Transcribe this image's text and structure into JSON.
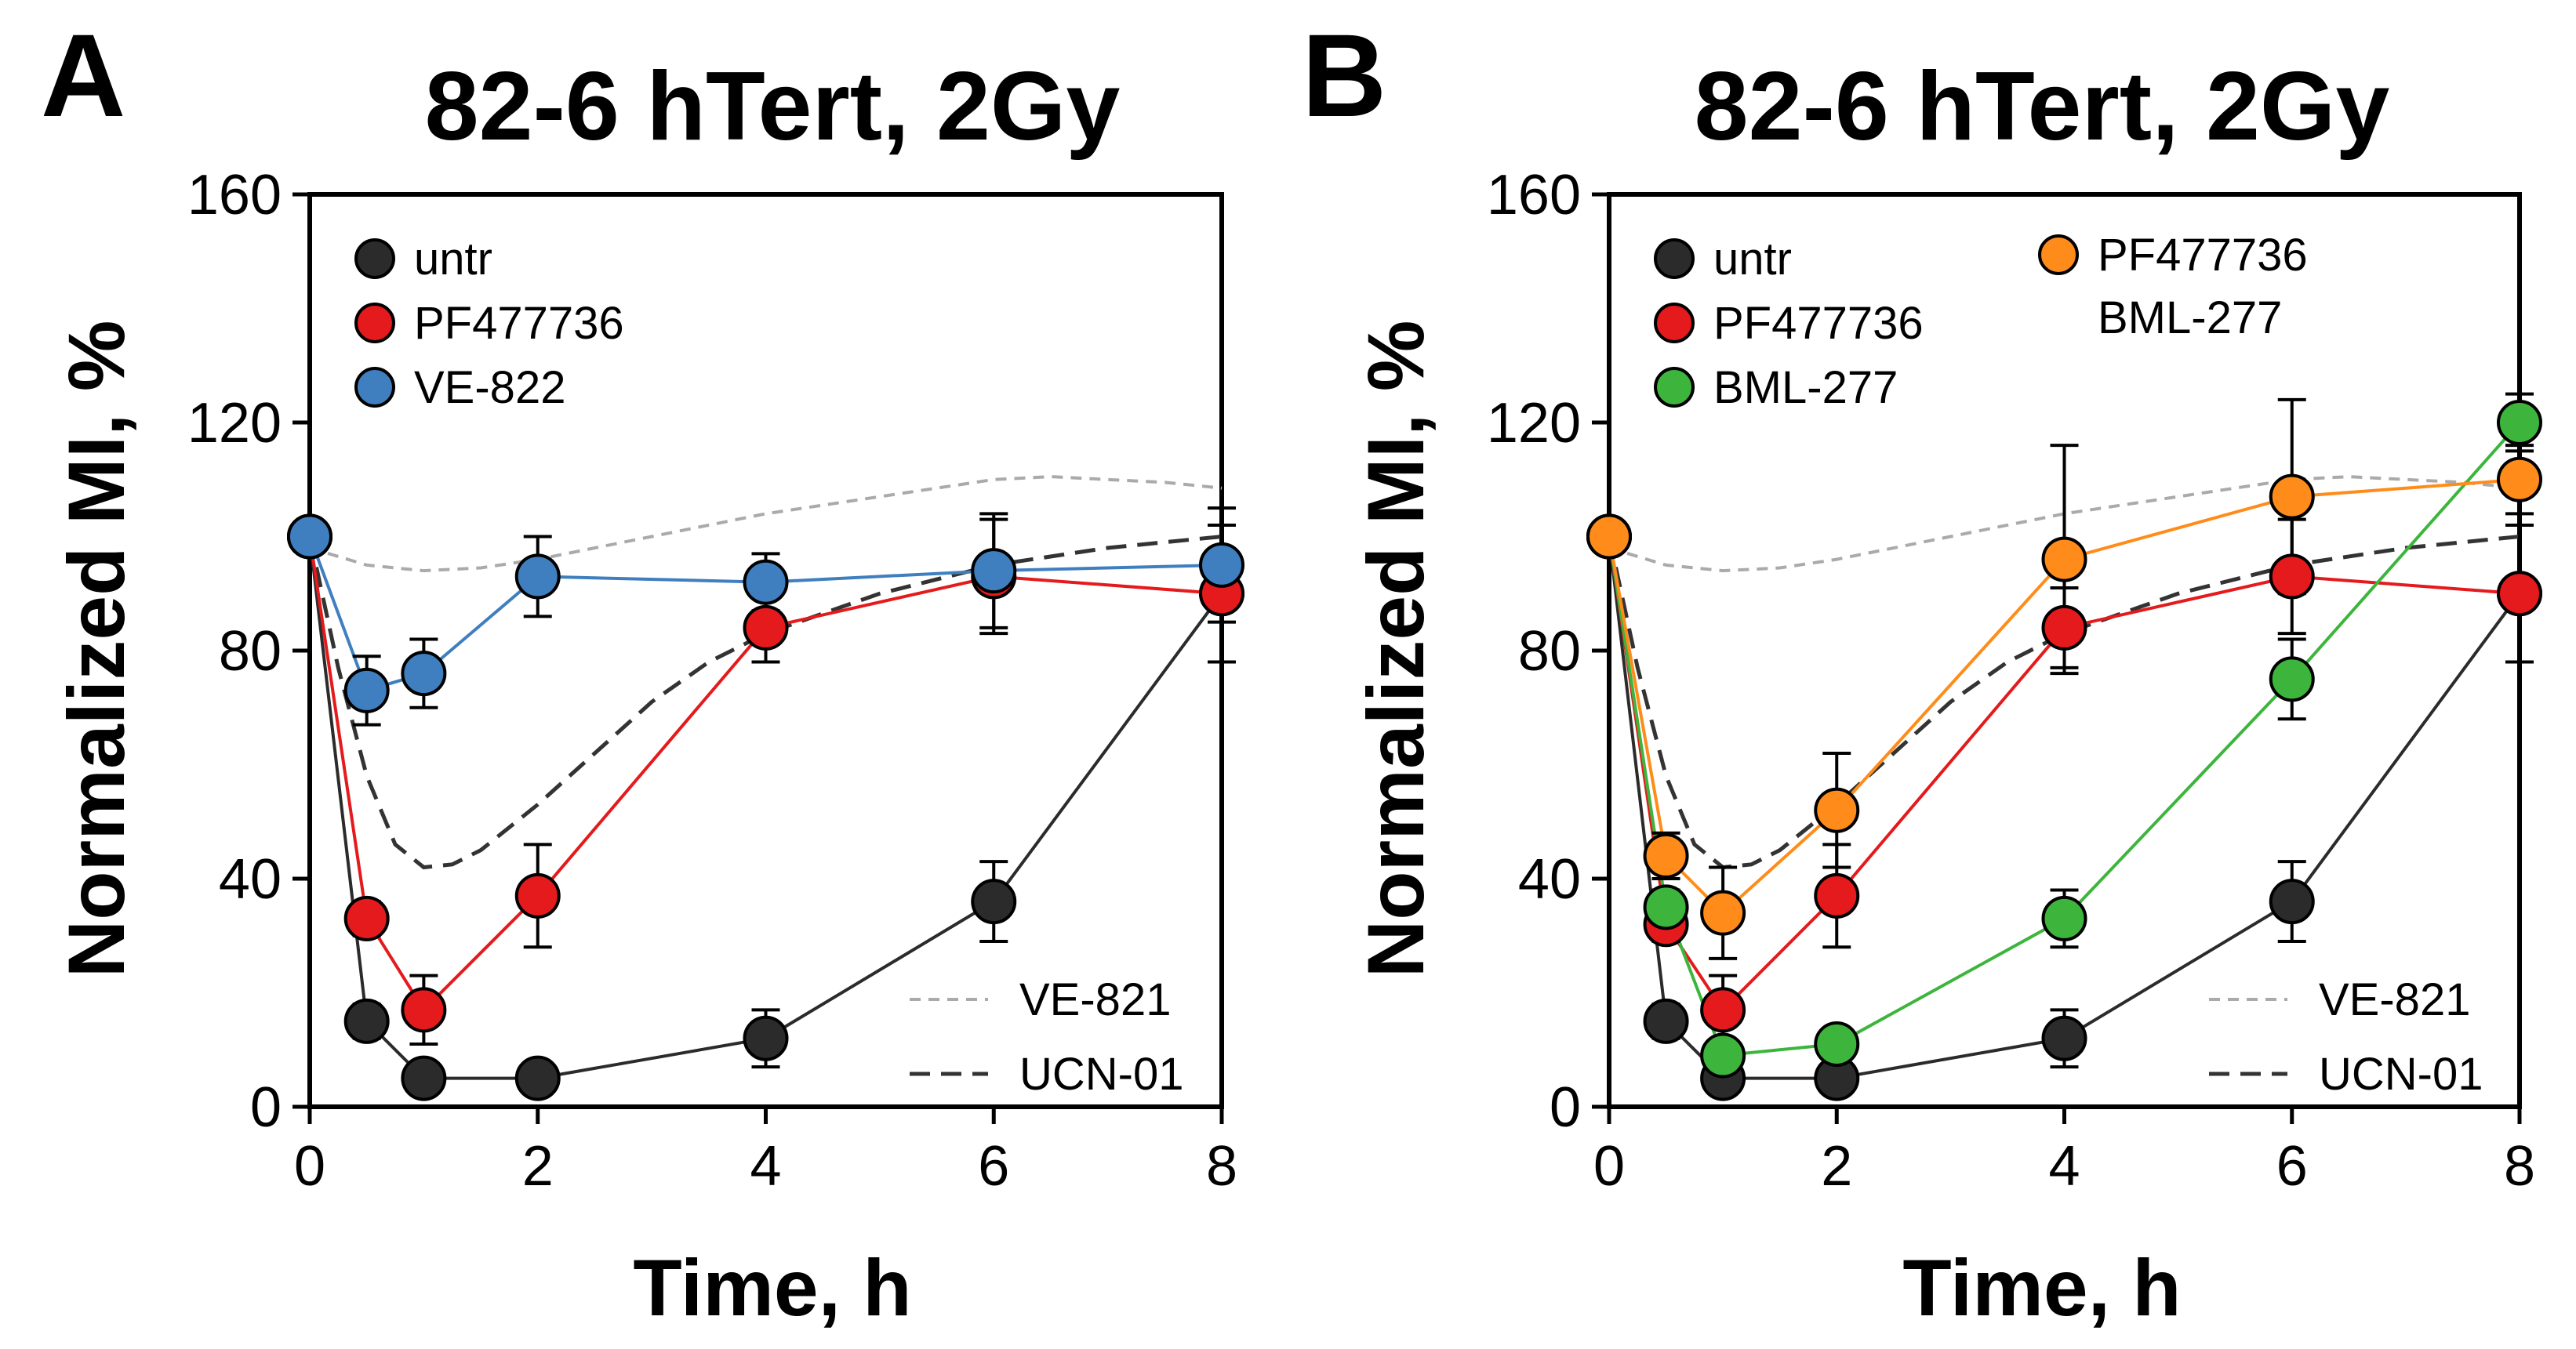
{
  "figure": {
    "panels": [
      {
        "letter": "A",
        "title": "82-6 hTert, 2Gy"
      },
      {
        "letter": "B",
        "title": "82-6 hTert, 2Gy"
      }
    ]
  },
  "colors": {
    "untr": "#2b2b2b",
    "PF477736": "#e41a1c",
    "VE-822": "#3f7fbf",
    "BML-277": "#3db53d",
    "PF477736 BML-277": "#ff8c1a",
    "VE-821": "#aaaaaa",
    "UCN-01": "#333333"
  },
  "chart_data": [
    {
      "panel": "A",
      "type": "line",
      "title": "82-6 hTert, 2Gy",
      "xlabel": "Time, h",
      "ylabel": "Normalized MI, %",
      "xlim": [
        0,
        8
      ],
      "ylim": [
        0,
        160
      ],
      "xticks": [
        0,
        2,
        4,
        6,
        8
      ],
      "yticks": [
        0,
        40,
        80,
        120,
        160
      ],
      "series": [
        {
          "name": "untr",
          "legend": [
            "untr"
          ],
          "color_key": "untr",
          "x": [
            0,
            0.5,
            1,
            2,
            4,
            6,
            8
          ],
          "y": [
            100,
            15,
            5,
            5,
            12,
            36,
            90
          ],
          "err": [
            0,
            3,
            2,
            2,
            5,
            7,
            12
          ]
        },
        {
          "name": "PF477736",
          "legend": [
            "PF477736"
          ],
          "color_key": "PF477736",
          "x": [
            0,
            0.5,
            1,
            2,
            4,
            6,
            8
          ],
          "y": [
            100,
            33,
            17,
            37,
            84,
            93,
            90
          ],
          "err": [
            0,
            3,
            6,
            9,
            6,
            10,
            12
          ]
        },
        {
          "name": "VE-822",
          "legend": [
            "VE-822"
          ],
          "color_key": "VE-822",
          "x": [
            0,
            0.5,
            1,
            2,
            4,
            6,
            8
          ],
          "y": [
            100,
            73,
            76,
            93,
            92,
            94,
            95
          ],
          "err": [
            0,
            6,
            6,
            7,
            5,
            10,
            10
          ]
        }
      ],
      "reference_curves": [
        {
          "name": "VE-821",
          "color_key": "VE-821",
          "dash": "short",
          "x": [
            0,
            0.5,
            1,
            1.5,
            2,
            3,
            4,
            5,
            6,
            6.5,
            7,
            7.5,
            8
          ],
          "y": [
            98,
            95,
            94,
            94.5,
            96,
            100,
            104,
            107,
            110,
            110.5,
            110,
            109.5,
            108.5
          ]
        },
        {
          "name": "UCN-01",
          "color_key": "UCN-01",
          "dash": "long",
          "x": [
            0,
            0.25,
            0.5,
            0.75,
            1,
            1.25,
            1.5,
            2,
            2.5,
            3,
            3.5,
            4,
            5,
            6,
            7,
            8
          ],
          "y": [
            100,
            77,
            58,
            46,
            42,
            42.5,
            45,
            53,
            62,
            71,
            78,
            83,
            90,
            95,
            98,
            100
          ]
        }
      ]
    },
    {
      "panel": "B",
      "type": "line",
      "title": "82-6 hTert, 2Gy",
      "xlabel": "Time, h",
      "ylabel": "Normalized MI, %",
      "xlim": [
        0,
        8
      ],
      "ylim": [
        0,
        160
      ],
      "xticks": [
        0,
        2,
        4,
        6,
        8
      ],
      "yticks": [
        0,
        40,
        80,
        120,
        160
      ],
      "series": [
        {
          "name": "untr",
          "legend": [
            "untr"
          ],
          "color_key": "untr",
          "x": [
            0,
            0.5,
            1,
            2,
            4,
            6,
            8
          ],
          "y": [
            100,
            15,
            5,
            5,
            12,
            36,
            90
          ],
          "err": [
            0,
            3,
            2,
            2,
            5,
            7,
            12
          ]
        },
        {
          "name": "PF477736",
          "legend": [
            "PF477736"
          ],
          "color_key": "PF477736",
          "x": [
            0,
            0.5,
            1,
            2,
            4,
            6,
            8
          ],
          "y": [
            100,
            32,
            17,
            37,
            84,
            93,
            90
          ],
          "err": [
            0,
            3,
            6,
            9,
            7,
            10,
            12
          ]
        },
        {
          "name": "BML-277",
          "legend": [
            "BML-277"
          ],
          "color_key": "BML-277",
          "x": [
            0,
            0.5,
            1,
            2,
            4,
            6,
            8
          ],
          "y": [
            100,
            35,
            9,
            11,
            33,
            75,
            120
          ],
          "err": [
            0,
            3,
            2,
            2,
            5,
            7,
            5
          ]
        },
        {
          "name": "PF477736 BML-277",
          "legend": [
            "PF477736",
            "BML-277"
          ],
          "color_key": "PF477736 BML-277",
          "x": [
            0,
            0.5,
            1,
            2,
            4,
            6,
            8
          ],
          "y": [
            100,
            44,
            34,
            52,
            96,
            107,
            110
          ],
          "err": [
            0,
            4,
            8,
            10,
            20,
            17,
            6
          ]
        }
      ],
      "reference_curves": [
        {
          "name": "VE-821",
          "color_key": "VE-821",
          "dash": "short",
          "x": [
            0,
            0.5,
            1,
            1.5,
            2,
            3,
            4,
            5,
            6,
            6.5,
            7,
            7.5,
            8
          ],
          "y": [
            98,
            95,
            94,
            94.5,
            96,
            100,
            104,
            107,
            110,
            110.5,
            110,
            109.5,
            108.5
          ]
        },
        {
          "name": "UCN-01",
          "color_key": "UCN-01",
          "dash": "long",
          "x": [
            0,
            0.25,
            0.5,
            0.75,
            1,
            1.25,
            1.5,
            2,
            2.5,
            3,
            3.5,
            4,
            5,
            6,
            7,
            8
          ],
          "y": [
            100,
            77,
            58,
            46,
            42,
            42.5,
            45,
            53,
            62,
            71,
            78,
            83,
            90,
            95,
            98,
            100
          ]
        }
      ]
    }
  ]
}
